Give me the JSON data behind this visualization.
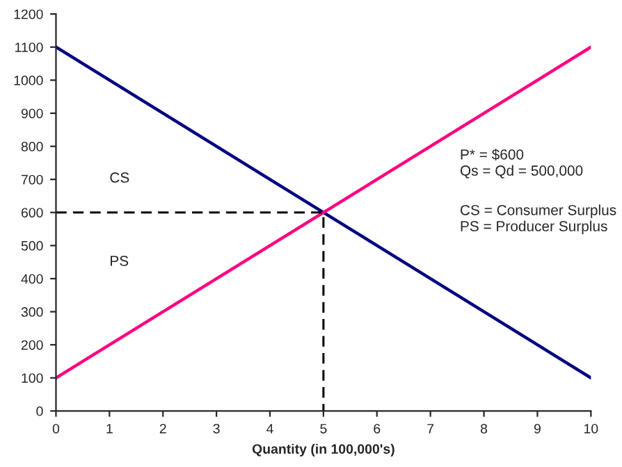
{
  "chart_data": {
    "type": "line",
    "xlabel": "Quantity (in 100,000's)",
    "xlim": [
      0,
      10
    ],
    "xticks": [
      0,
      1,
      2,
      3,
      4,
      5,
      6,
      7,
      8,
      9,
      10
    ],
    "ylim": [
      0,
      1200
    ],
    "yticks": [
      0,
      100,
      200,
      300,
      400,
      500,
      600,
      700,
      800,
      900,
      1000,
      1100,
      1200
    ],
    "grid": false,
    "legend": false,
    "marker": "none",
    "series": [
      {
        "color": "#000080",
        "x": [
          0,
          10
        ],
        "values": [
          1100,
          100
        ],
        "line_style": "solid"
      },
      {
        "color": "#ff0080",
        "x": [
          0,
          10
        ],
        "values": [
          100,
          1100
        ],
        "line_style": "solid"
      },
      {
        "color": "#000000",
        "x": [
          0,
          5,
          5
        ],
        "values": [
          600,
          600,
          0
        ],
        "line_style": "dashed"
      }
    ],
    "annotations": [
      "CS",
      "PS",
      "P* = $600",
      "Qs = Qd = 500,000",
      "CS = Consumer Surplus",
      "PS = Producer Surplus"
    ]
  }
}
